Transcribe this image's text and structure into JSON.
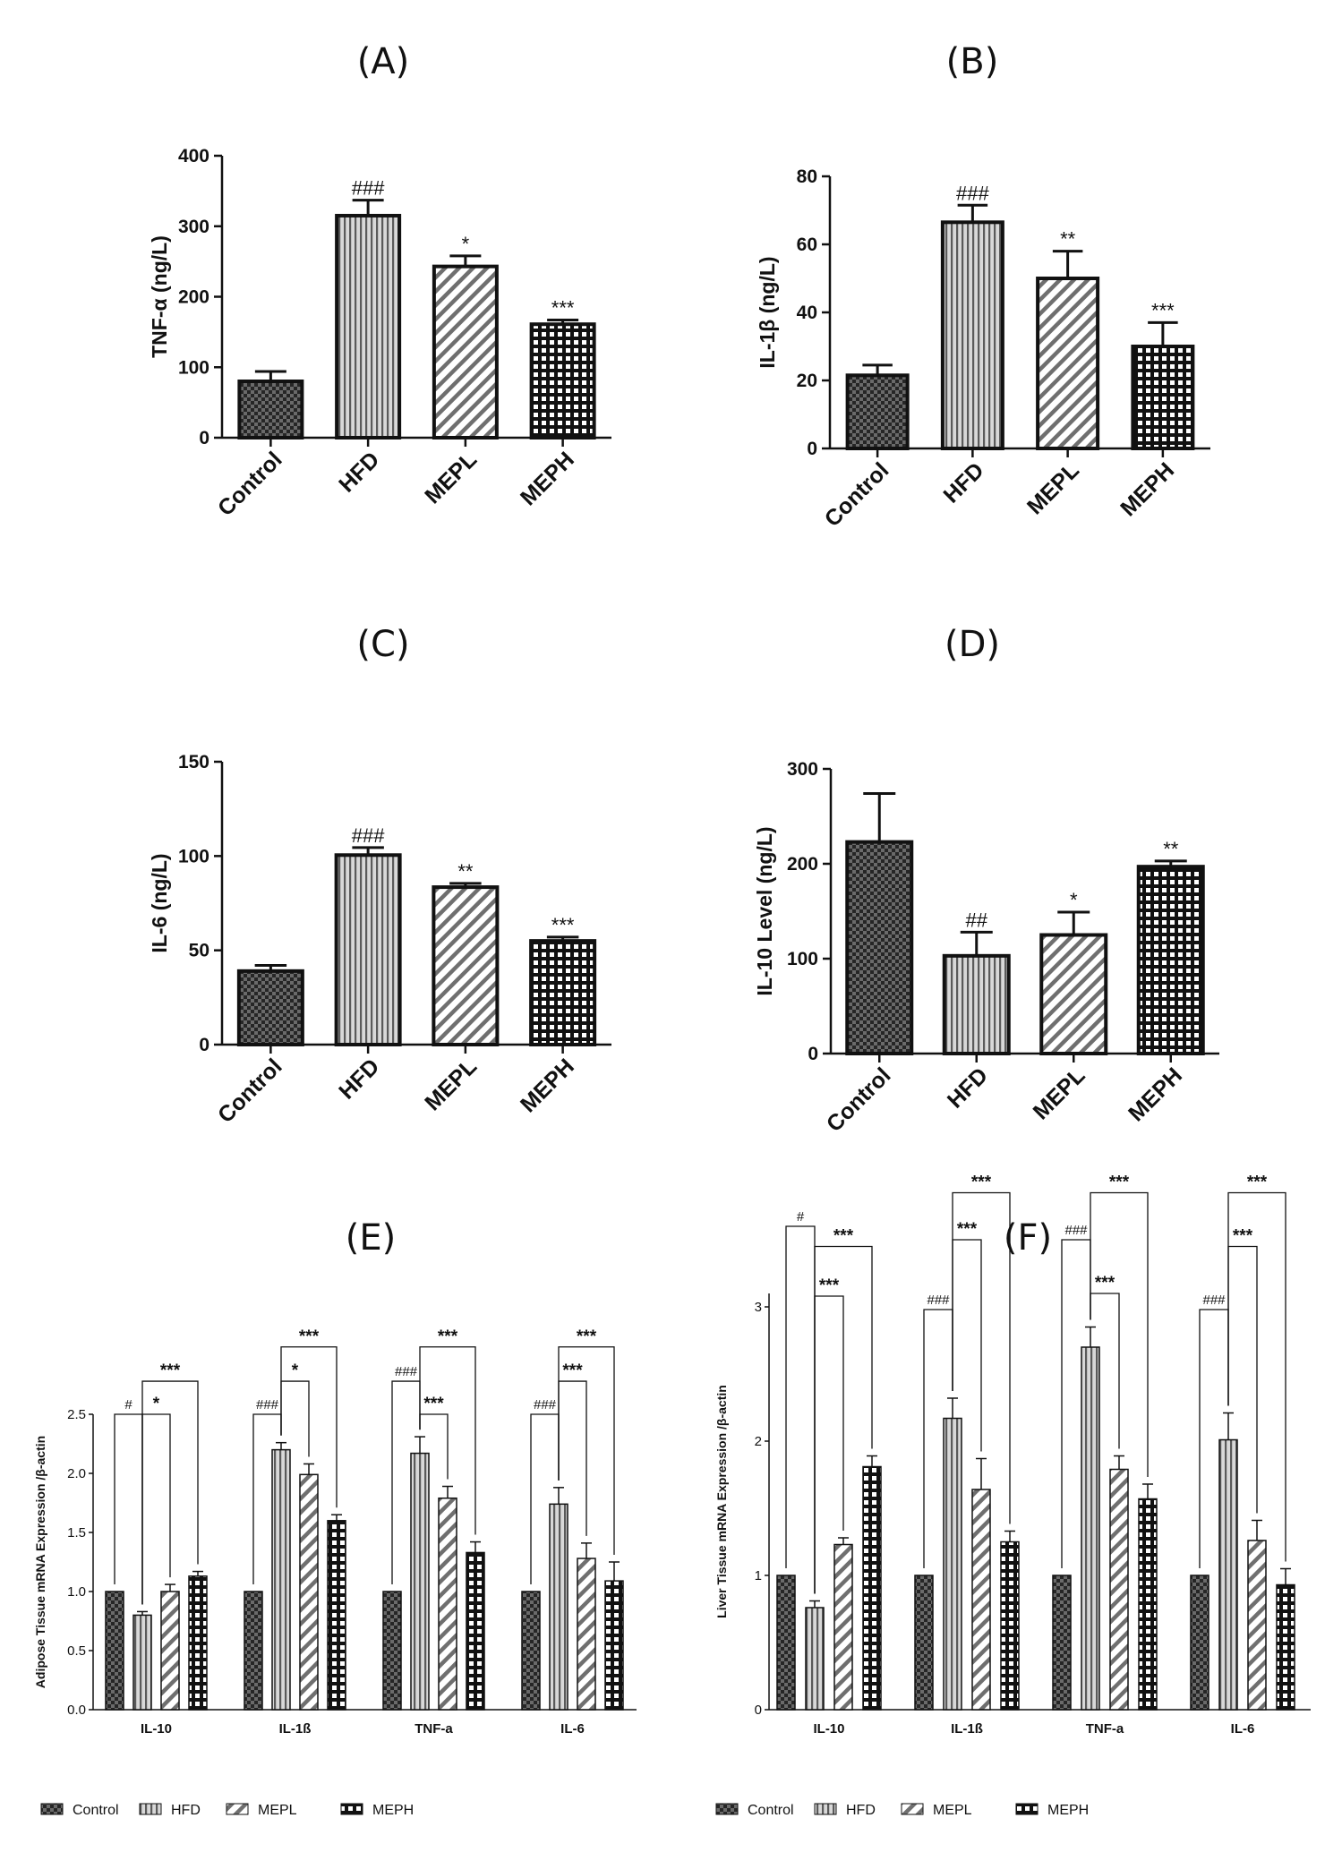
{
  "colors": {
    "ink": "#111111",
    "background": "#ffffff"
  },
  "chart_data": [
    {
      "panel": "(A)",
      "type": "bar",
      "ylabel": "TNF-α  (ng/L)",
      "categories": [
        "Control",
        "HFD",
        "MEPL",
        "MEPH"
      ],
      "values": [
        80,
        315,
        243,
        161
      ],
      "errors": [
        14,
        22,
        15,
        6
      ],
      "significance": [
        "",
        "###",
        "*",
        "***"
      ],
      "patterns": [
        "checker",
        "vlines",
        "diag",
        "grid"
      ],
      "ylim": [
        0,
        400
      ],
      "yticks": [
        0,
        100,
        200,
        300,
        400
      ]
    },
    {
      "panel": "(B)",
      "type": "bar",
      "ylabel": "IL-1β (ng/L)",
      "categories": [
        "Control",
        "HFD",
        "MEPL",
        "MEPH"
      ],
      "values": [
        21.5,
        66.5,
        50,
        30
      ],
      "errors": [
        3,
        5,
        8,
        7
      ],
      "significance": [
        "",
        "###",
        "**",
        "***"
      ],
      "patterns": [
        "checker",
        "vlines",
        "diag",
        "grid"
      ],
      "ylim": [
        0,
        80
      ],
      "yticks": [
        0,
        20,
        40,
        60,
        80
      ]
    },
    {
      "panel": "(C)",
      "type": "bar",
      "ylabel": "IL-6 (ng/L)",
      "categories": [
        "Control",
        "HFD",
        "MEPL",
        "MEPH"
      ],
      "values": [
        39,
        100.5,
        83.5,
        55
      ],
      "errors": [
        3,
        4,
        2,
        2
      ],
      "significance": [
        "",
        "###",
        "**",
        "***"
      ],
      "patterns": [
        "checker",
        "vlines",
        "diag",
        "grid"
      ],
      "ylim": [
        0,
        150
      ],
      "yticks": [
        0,
        50,
        100,
        150
      ]
    },
    {
      "panel": "(D)",
      "type": "bar",
      "ylabel": "IL-10 Level (ng/L)",
      "categories": [
        "Control",
        "HFD",
        "MEPL",
        "MEPH"
      ],
      "values": [
        223,
        103,
        125,
        197
      ],
      "errors": [
        51,
        25,
        24,
        6
      ],
      "significance": [
        "",
        "##",
        "*",
        "**"
      ],
      "patterns": [
        "checker",
        "vlines",
        "diag",
        "grid"
      ],
      "ylim": [
        0,
        300
      ],
      "yticks": [
        0,
        100,
        200,
        300
      ]
    },
    {
      "panel": "(E)",
      "type": "bar",
      "ylabel": "Adipose Tissue mRNA Expression /β-actin",
      "categories": [
        "IL-10",
        "IL-1ß",
        "TNF-a",
        "IL-6"
      ],
      "series": [
        {
          "name": "Control",
          "pattern": "checker",
          "values": [
            1.0,
            1.0,
            1.0,
            1.0
          ],
          "errors": [
            0,
            0,
            0,
            0
          ]
        },
        {
          "name": "HFD",
          "pattern": "vlines",
          "values": [
            0.8,
            2.2,
            2.17,
            1.74
          ],
          "errors": [
            0.03,
            0.06,
            0.14,
            0.14
          ]
        },
        {
          "name": "MEPL",
          "pattern": "diag",
          "values": [
            1.0,
            1.99,
            1.79,
            1.28
          ],
          "errors": [
            0.06,
            0.09,
            0.1,
            0.13
          ]
        },
        {
          "name": "MEPH",
          "pattern": "grid",
          "values": [
            1.13,
            1.6,
            1.33,
            1.09
          ],
          "errors": [
            0.04,
            0.05,
            0.09,
            0.16
          ]
        }
      ],
      "brackets": [
        {
          "group": 0,
          "from": 0,
          "to": 1,
          "label": "#",
          "level": 2.5
        },
        {
          "group": 0,
          "from": 1,
          "to": 2,
          "label": "*",
          "level": 2.5
        },
        {
          "group": 0,
          "from": 1,
          "to": 3,
          "label": "***",
          "level": 2.78
        },
        {
          "group": 1,
          "from": 0,
          "to": 1,
          "label": "###",
          "level": 2.5
        },
        {
          "group": 1,
          "from": 1,
          "to": 2,
          "label": "*",
          "level": 2.78
        },
        {
          "group": 1,
          "from": 1,
          "to": 3,
          "label": "***",
          "level": 3.07
        },
        {
          "group": 2,
          "from": 0,
          "to": 1,
          "label": "###",
          "level": 2.78
        },
        {
          "group": 2,
          "from": 1,
          "to": 2,
          "label": "***",
          "level": 2.5
        },
        {
          "group": 2,
          "from": 1,
          "to": 3,
          "label": "***",
          "level": 3.07
        },
        {
          "group": 3,
          "from": 0,
          "to": 1,
          "label": "###",
          "level": 2.5
        },
        {
          "group": 3,
          "from": 1,
          "to": 2,
          "label": "***",
          "level": 2.78
        },
        {
          "group": 3,
          "from": 1,
          "to": 3,
          "label": "***",
          "level": 3.07
        }
      ],
      "ylim": [
        0,
        2.5
      ],
      "yticks": [
        "0.0",
        "0.5",
        "1.0",
        "1.5",
        "2.0",
        "2.5"
      ]
    },
    {
      "panel": "(F)",
      "type": "bar",
      "ylabel": "Liver Tissue mRNA Expression /β-actin",
      "categories": [
        "IL-10",
        "IL-1ß",
        "TNF-a",
        "IL-6"
      ],
      "series": [
        {
          "name": "Control",
          "pattern": "checker",
          "values": [
            1.0,
            1.0,
            1.0,
            1.0
          ],
          "errors": [
            0,
            0,
            0,
            0
          ]
        },
        {
          "name": "HFD",
          "pattern": "vlines",
          "values": [
            0.76,
            2.17,
            2.7,
            2.01
          ],
          "errors": [
            0.05,
            0.15,
            0.15,
            0.2
          ]
        },
        {
          "name": "MEPL",
          "pattern": "diag",
          "values": [
            1.23,
            1.64,
            1.79,
            1.26
          ],
          "errors": [
            0.05,
            0.23,
            0.1,
            0.15
          ]
        },
        {
          "name": "MEPH",
          "pattern": "grid",
          "values": [
            1.81,
            1.25,
            1.57,
            0.93
          ],
          "errors": [
            0.08,
            0.08,
            0.11,
            0.12
          ]
        }
      ],
      "brackets": [
        {
          "group": 0,
          "from": 0,
          "to": 1,
          "label": "#",
          "level": 3.6
        },
        {
          "group": 0,
          "from": 1,
          "to": 2,
          "label": "***",
          "level": 3.08
        },
        {
          "group": 0,
          "from": 1,
          "to": 3,
          "label": "***",
          "level": 3.45
        },
        {
          "group": 1,
          "from": 0,
          "to": 1,
          "label": "###",
          "level": 2.98
        },
        {
          "group": 1,
          "from": 1,
          "to": 2,
          "label": "***",
          "level": 3.5
        },
        {
          "group": 1,
          "from": 1,
          "to": 3,
          "label": "***",
          "level": 3.85
        },
        {
          "group": 2,
          "from": 0,
          "to": 1,
          "label": "###",
          "level": 3.5
        },
        {
          "group": 2,
          "from": 1,
          "to": 2,
          "label": "***",
          "level": 3.1
        },
        {
          "group": 2,
          "from": 1,
          "to": 3,
          "label": "***",
          "level": 3.85
        },
        {
          "group": 3,
          "from": 0,
          "to": 1,
          "label": "###",
          "level": 2.98
        },
        {
          "group": 3,
          "from": 1,
          "to": 2,
          "label": "***",
          "level": 3.45
        },
        {
          "group": 3,
          "from": 1,
          "to": 3,
          "label": "***",
          "level": 3.85
        }
      ],
      "ylim": [
        0,
        3.1
      ],
      "yticks": [
        "0",
        "1",
        "2",
        "3"
      ]
    }
  ]
}
